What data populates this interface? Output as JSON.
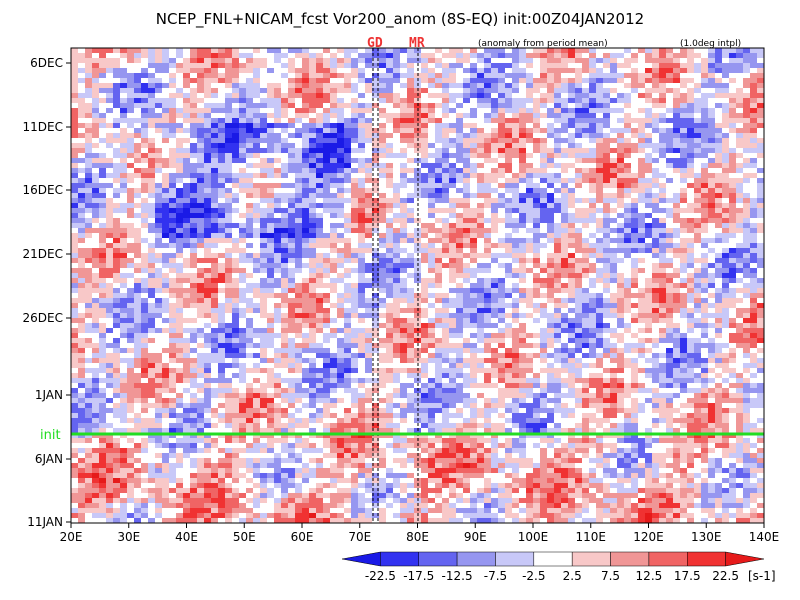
{
  "chart_data": {
    "type": "heatmap",
    "title": "NCEP_FNL+NICAM_fcst Vor200_anom (8S-EQ) init:00Z04JAN2012",
    "subtitle_left": "(anomaly from period mean)",
    "subtitle_right": "(1.0deg intpl)",
    "x_ticks": [
      "20E",
      "30E",
      "40E",
      "50E",
      "60E",
      "70E",
      "80E",
      "90E",
      "100E",
      "110E",
      "120E",
      "130E",
      "140E"
    ],
    "x_range": [
      20,
      140
    ],
    "y_ticks": [
      "6DEC",
      "11DEC",
      "16DEC",
      "21DEC",
      "26DEC",
      "1JAN",
      "6JAN",
      "11JAN"
    ],
    "markers": [
      {
        "label": "GD",
        "lon": 73
      },
      {
        "label": "MR",
        "lon": 80
      }
    ],
    "init_label": "init",
    "colorbar": {
      "levels": [
        "-22.5",
        "-17.5",
        "-12.5",
        "-7.5",
        "-2.5",
        "2.5",
        "7.5",
        "12.5",
        "17.5",
        "22.5"
      ],
      "unit": "[s-1]",
      "colors": [
        "#1a1ae6",
        "#3232f0",
        "#6464f0",
        "#9696f0",
        "#c8c8f8",
        "#ffffff",
        "#f8c8c8",
        "#f09696",
        "#f06464",
        "#f03232",
        "#e61a1a"
      ]
    }
  }
}
